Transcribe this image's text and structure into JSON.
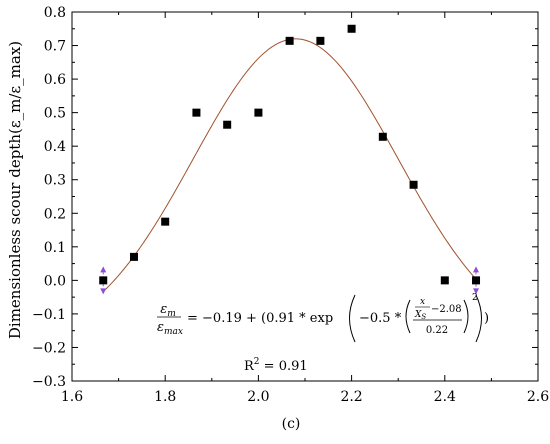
{
  "chart_data": {
    "type": "scatter",
    "ylabel": "Dimensionless scour depth(ε_m/ε_max)",
    "caption": "(c)",
    "xlim": [
      1.6,
      2.6
    ],
    "ylim": [
      -0.3,
      0.8
    ],
    "x_ticks": [
      "1.6",
      "1.8",
      "2.0",
      "2.2",
      "2.4",
      "2.6"
    ],
    "y_ticks": [
      "0.8",
      "0.7",
      "0.6",
      "0.5",
      "0.4",
      "0.3",
      "0.2",
      "0.1",
      "0.0",
      "−0.1",
      "−0.2",
      "−0.3"
    ],
    "series": [
      {
        "marker": "square",
        "color": "#000000",
        "points": [
          {
            "x": 1.667,
            "y": 0.0
          },
          {
            "x": 1.733,
            "y": 0.07
          },
          {
            "x": 1.8,
            "y": 0.175
          },
          {
            "x": 1.867,
            "y": 0.5
          },
          {
            "x": 1.933,
            "y": 0.464
          },
          {
            "x": 2.0,
            "y": 0.5
          },
          {
            "x": 2.067,
            "y": 0.714
          },
          {
            "x": 2.133,
            "y": 0.714
          },
          {
            "x": 2.2,
            "y": 0.75
          },
          {
            "x": 2.267,
            "y": 0.428
          },
          {
            "x": 2.333,
            "y": 0.285
          },
          {
            "x": 2.4,
            "y": 0.0
          },
          {
            "x": 2.467,
            "y": 0.0
          }
        ]
      }
    ],
    "fit": {
      "color": "#a0522d",
      "y0": -0.19,
      "a": 0.91,
      "xc": 2.08,
      "w": 0.22,
      "x_range": [
        1.667,
        2.467
      ]
    },
    "equation": {
      "lhs_num": "ε",
      "lhs_num_sub": "m",
      "lhs_den": "ε",
      "lhs_den_sub": "max",
      "rhs_start": "= −0.19 + (0.91 * exp",
      "inner_start": "−0.5 *",
      "frac_num": "x",
      "frac_den": "X",
      "frac_den_sub": "S",
      "frac_minus": "−2.08",
      "frac_div": "0.22",
      "power": "2",
      "rhs_end": ")"
    },
    "r2_label": "R",
    "r2_sup": "2",
    "r2_value": " = 0.91",
    "end_markers_color": "#8a4fd6"
  }
}
